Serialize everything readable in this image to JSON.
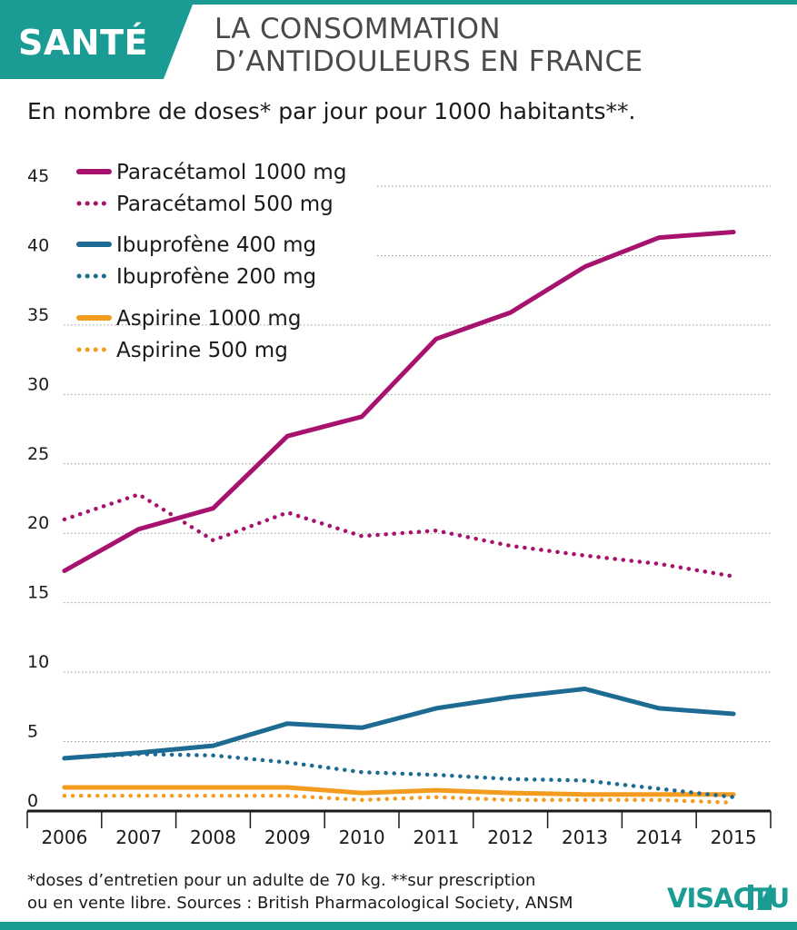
{
  "header": {
    "badge": "SANTÉ",
    "title_line1": "LA CONSOMMATION",
    "title_line2": "D’ANTIDOULEURS EN FRANCE",
    "subtitle": "En nombre de doses* par jour pour 1000 habitants**."
  },
  "footer": {
    "note_line1": "*doses d’entretien pour un adulte de 70 kg. **sur prescription",
    "note_line2": "ou en vente libre. Sources : British Pharmacological Society, ANSM",
    "logo": "VISACTU"
  },
  "colors": {
    "accent": "#1a9c95",
    "magenta": "#a8126f",
    "blue": "#1d6b93",
    "orange": "#f39c1f"
  },
  "chart_data": {
    "type": "line",
    "title": "LA CONSOMMATION D’ANTIDOULEURS EN FRANCE",
    "subtitle": "En nombre de doses* par jour pour 1000 habitants**.",
    "x": [
      2006,
      2007,
      2008,
      2009,
      2010,
      2011,
      2012,
      2013,
      2014,
      2015
    ],
    "ylim": [
      0,
      45
    ],
    "yticks": [
      0,
      5,
      10,
      15,
      20,
      25,
      30,
      35,
      40,
      45
    ],
    "grid": true,
    "legend": "top-left",
    "series": [
      {
        "name": "Paracétamol 1000 mg",
        "color": "#a8126f",
        "style": "solid",
        "values": [
          17.3,
          20.3,
          21.8,
          27.0,
          28.4,
          34.0,
          35.9,
          39.2,
          41.3,
          41.7
        ]
      },
      {
        "name": "Paracétamol 500 mg",
        "color": "#a8126f",
        "style": "dotted",
        "values": [
          21.0,
          22.8,
          19.5,
          21.5,
          19.8,
          20.2,
          19.1,
          18.4,
          17.8,
          16.9
        ]
      },
      {
        "name": "Ibuprofène 400 mg",
        "color": "#1d6b93",
        "style": "solid",
        "values": [
          3.8,
          4.2,
          4.7,
          6.3,
          6.0,
          7.4,
          8.2,
          8.8,
          7.4,
          7.0
        ]
      },
      {
        "name": "Ibuprofène 200 mg",
        "color": "#1d6b93",
        "style": "dotted",
        "values": [
          3.8,
          4.1,
          4.0,
          3.5,
          2.8,
          2.6,
          2.3,
          2.2,
          1.6,
          1.0
        ]
      },
      {
        "name": "Aspirine 1000 mg",
        "color": "#f39c1f",
        "style": "solid",
        "values": [
          1.7,
          1.7,
          1.7,
          1.7,
          1.3,
          1.5,
          1.3,
          1.2,
          1.2,
          1.2
        ]
      },
      {
        "name": "Aspirine 500 mg",
        "color": "#f39c1f",
        "style": "dotted",
        "values": [
          1.1,
          1.1,
          1.1,
          1.1,
          0.8,
          1.0,
          0.8,
          0.8,
          0.8,
          0.6
        ]
      }
    ]
  }
}
